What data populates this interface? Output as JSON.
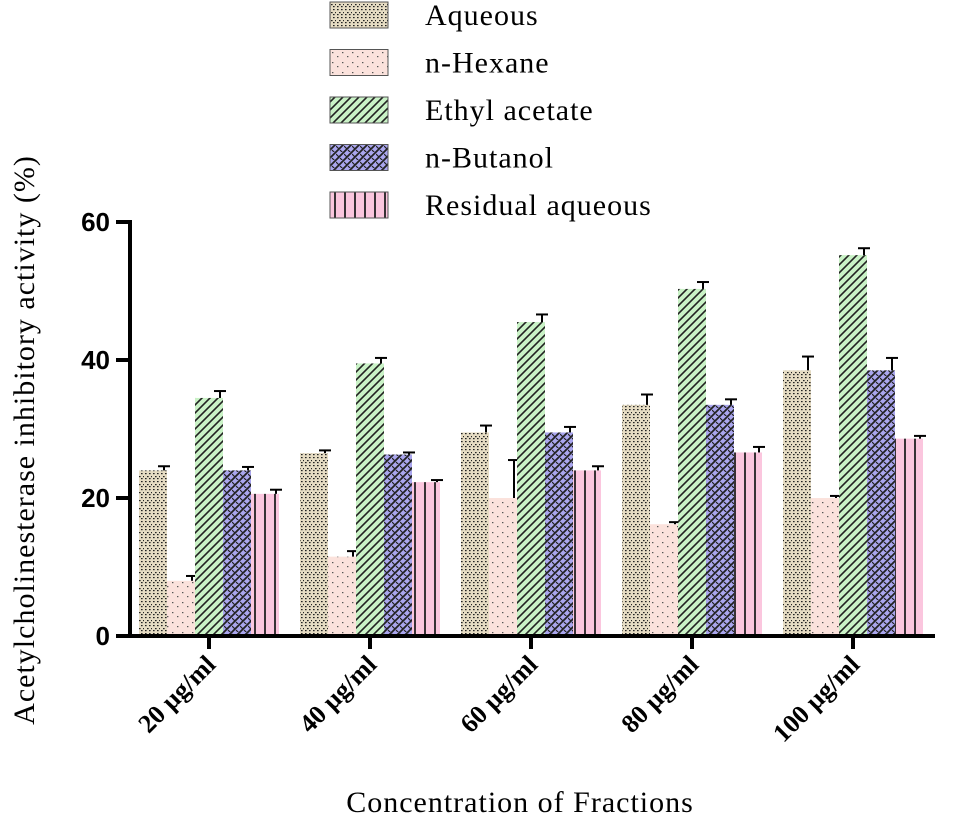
{
  "chart_data": {
    "type": "bar",
    "title": "",
    "xlabel": "Concentration of Fractions",
    "ylabel": "Acetylcholinesterase inhibitory activity (%)",
    "ylim": [
      0,
      60
    ],
    "yticks": [
      0,
      20,
      40,
      60
    ],
    "grid": false,
    "legend_position": "top",
    "categories": [
      "20 µg/ml",
      "40 µg/ml",
      "60 µg/ml",
      "80 µg/ml",
      "100 µg/ml"
    ],
    "series": [
      {
        "name": "Aqueous",
        "key": "aqueous",
        "pattern": "dots",
        "fill": "#e6dcc3",
        "stroke": "#222222",
        "values": [
          24,
          26.5,
          29.5,
          33.5,
          38.5
        ],
        "errors": [
          0.6,
          0.4,
          1.0,
          1.5,
          2.0
        ]
      },
      {
        "name": "n-Hexane",
        "key": "hexane",
        "pattern": "sparse-dots",
        "fill": "#fbe2dc",
        "stroke": "#555555",
        "values": [
          8,
          11.5,
          20,
          16.2,
          20
        ],
        "errors": [
          0.7,
          0.8,
          5.5,
          0.3,
          0.3
        ]
      },
      {
        "name": "Ethyl acetate",
        "key": "ethyl",
        "pattern": "diagonal",
        "fill": "#c9f2c6",
        "stroke": "#222222",
        "values": [
          34.5,
          39.5,
          45.5,
          50.3,
          55.2
        ],
        "errors": [
          1.0,
          0.8,
          1.1,
          1.0,
          1.0
        ]
      },
      {
        "name": "n-Butanol",
        "key": "butanol",
        "pattern": "crosshatch",
        "fill": "#aaa6ee",
        "stroke": "#222222",
        "values": [
          24,
          26.3,
          29.5,
          33.5,
          38.5
        ],
        "errors": [
          0.5,
          0.3,
          0.8,
          0.8,
          1.8
        ]
      },
      {
        "name": "Residual aqueous",
        "key": "residual",
        "pattern": "vertical",
        "fill": "#fbc6de",
        "stroke": "#222222",
        "values": [
          20.6,
          22.3,
          24,
          26.6,
          28.6
        ],
        "errors": [
          0.6,
          0.3,
          0.6,
          0.8,
          0.4
        ]
      }
    ]
  },
  "colors": {
    "axis": "#000000",
    "error_bar": "#000000"
  }
}
